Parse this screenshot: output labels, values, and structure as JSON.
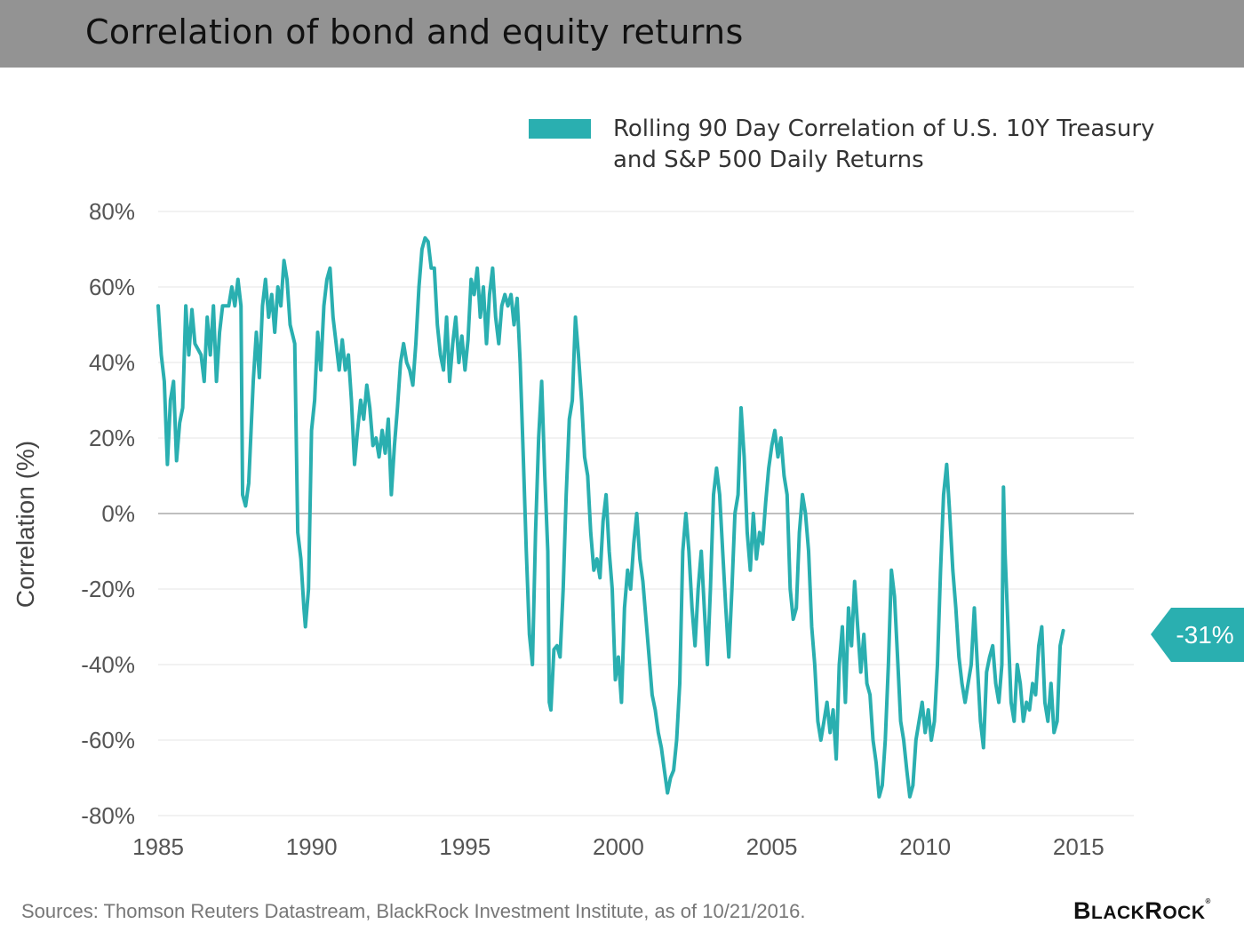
{
  "header": {
    "title": "Correlation of bond and equity returns"
  },
  "footer": {
    "source": "Sources: Thomson Reuters Datastream, BlackRock Investment Institute, as of 10/21/2016.",
    "logo_text": "BlackRock"
  },
  "colors": {
    "series": "#2aafb0",
    "title_bar": "#939393",
    "grid": "#e6e6e6",
    "zero_line": "#aaaaaa"
  },
  "chart_data": {
    "type": "line",
    "title": "Correlation of bond and equity returns",
    "xlabel": "",
    "ylabel": "Correlation (%)",
    "xlim": [
      1985,
      2016.8
    ],
    "ylim": [
      -80,
      80
    ],
    "x_ticks": [
      "1985",
      "1990",
      "1995",
      "2000",
      "2005",
      "2010",
      "2015"
    ],
    "y_ticks": [
      "80%",
      "60%",
      "40%",
      "20%",
      "0%",
      "-20%",
      "-40%",
      "-60%",
      "-80%"
    ],
    "grid": true,
    "legend_position": "top-right",
    "series": [
      {
        "name": "Rolling 90 Day Correlation of U.S. 10Y Treasury and S&P 500 Daily Returns",
        "color": "#2aafb0",
        "points": [
          [
            1985.0,
            55
          ],
          [
            1985.1,
            42
          ],
          [
            1985.2,
            35
          ],
          [
            1985.3,
            13
          ],
          [
            1985.4,
            30
          ],
          [
            1985.5,
            35
          ],
          [
            1985.6,
            14
          ],
          [
            1985.7,
            24
          ],
          [
            1985.8,
            28
          ],
          [
            1985.9,
            55
          ],
          [
            1986.0,
            42
          ],
          [
            1986.1,
            54
          ],
          [
            1986.2,
            45
          ],
          [
            1986.4,
            42
          ],
          [
            1986.5,
            35
          ],
          [
            1986.6,
            52
          ],
          [
            1986.7,
            42
          ],
          [
            1986.8,
            55
          ],
          [
            1986.9,
            35
          ],
          [
            1987.0,
            48
          ],
          [
            1987.1,
            55
          ],
          [
            1987.3,
            55
          ],
          [
            1987.4,
            60
          ],
          [
            1987.5,
            55
          ],
          [
            1987.6,
            62
          ],
          [
            1987.7,
            55
          ],
          [
            1987.75,
            5
          ],
          [
            1987.85,
            2
          ],
          [
            1987.95,
            8
          ],
          [
            1988.1,
            35
          ],
          [
            1988.2,
            48
          ],
          [
            1988.3,
            36
          ],
          [
            1988.4,
            55
          ],
          [
            1988.5,
            62
          ],
          [
            1988.6,
            52
          ],
          [
            1988.7,
            58
          ],
          [
            1988.8,
            48
          ],
          [
            1988.9,
            60
          ],
          [
            1989.0,
            55
          ],
          [
            1989.1,
            67
          ],
          [
            1989.2,
            62
          ],
          [
            1989.3,
            50
          ],
          [
            1989.45,
            45
          ],
          [
            1989.5,
            20
          ],
          [
            1989.55,
            -5
          ],
          [
            1989.65,
            -12
          ],
          [
            1989.75,
            -25
          ],
          [
            1989.8,
            -30
          ],
          [
            1989.9,
            -20
          ],
          [
            1990.0,
            22
          ],
          [
            1990.1,
            30
          ],
          [
            1990.2,
            48
          ],
          [
            1990.3,
            38
          ],
          [
            1990.4,
            55
          ],
          [
            1990.5,
            62
          ],
          [
            1990.6,
            65
          ],
          [
            1990.7,
            52
          ],
          [
            1990.8,
            45
          ],
          [
            1990.9,
            38
          ],
          [
            1991.0,
            46
          ],
          [
            1991.1,
            38
          ],
          [
            1991.2,
            42
          ],
          [
            1991.3,
            30
          ],
          [
            1991.4,
            13
          ],
          [
            1991.5,
            22
          ],
          [
            1991.6,
            30
          ],
          [
            1991.7,
            25
          ],
          [
            1991.8,
            34
          ],
          [
            1991.9,
            28
          ],
          [
            1992.0,
            18
          ],
          [
            1992.1,
            20
          ],
          [
            1992.2,
            15
          ],
          [
            1992.3,
            22
          ],
          [
            1992.4,
            16
          ],
          [
            1992.5,
            25
          ],
          [
            1992.6,
            5
          ],
          [
            1992.7,
            18
          ],
          [
            1992.8,
            28
          ],
          [
            1992.9,
            40
          ],
          [
            1993.0,
            45
          ],
          [
            1993.1,
            40
          ],
          [
            1993.2,
            38
          ],
          [
            1993.3,
            34
          ],
          [
            1993.4,
            45
          ],
          [
            1993.5,
            60
          ],
          [
            1993.6,
            70
          ],
          [
            1993.7,
            73
          ],
          [
            1993.8,
            72
          ],
          [
            1993.9,
            65
          ],
          [
            1994.0,
            65
          ],
          [
            1994.1,
            50
          ],
          [
            1994.2,
            42
          ],
          [
            1994.3,
            38
          ],
          [
            1994.4,
            52
          ],
          [
            1994.5,
            35
          ],
          [
            1994.6,
            45
          ],
          [
            1994.7,
            52
          ],
          [
            1994.8,
            40
          ],
          [
            1994.9,
            47
          ],
          [
            1995.0,
            38
          ],
          [
            1995.1,
            46
          ],
          [
            1995.2,
            62
          ],
          [
            1995.3,
            58
          ],
          [
            1995.4,
            65
          ],
          [
            1995.5,
            52
          ],
          [
            1995.6,
            60
          ],
          [
            1995.7,
            45
          ],
          [
            1995.8,
            58
          ],
          [
            1995.9,
            65
          ],
          [
            1996.0,
            52
          ],
          [
            1996.1,
            45
          ],
          [
            1996.2,
            55
          ],
          [
            1996.3,
            58
          ],
          [
            1996.4,
            55
          ],
          [
            1996.5,
            58
          ],
          [
            1996.6,
            50
          ],
          [
            1996.7,
            57
          ],
          [
            1996.8,
            40
          ],
          [
            1996.9,
            15
          ],
          [
            1997.0,
            -10
          ],
          [
            1997.1,
            -32
          ],
          [
            1997.2,
            -40
          ],
          [
            1997.3,
            -5
          ],
          [
            1997.4,
            20
          ],
          [
            1997.5,
            35
          ],
          [
            1997.6,
            10
          ],
          [
            1997.7,
            -10
          ],
          [
            1997.75,
            -50
          ],
          [
            1997.8,
            -52
          ],
          [
            1997.9,
            -36
          ],
          [
            1998.0,
            -35
          ],
          [
            1998.1,
            -38
          ],
          [
            1998.2,
            -20
          ],
          [
            1998.3,
            5
          ],
          [
            1998.4,
            25
          ],
          [
            1998.5,
            30
          ],
          [
            1998.6,
            52
          ],
          [
            1998.7,
            42
          ],
          [
            1998.8,
            30
          ],
          [
            1998.9,
            15
          ],
          [
            1999.0,
            10
          ],
          [
            1999.1,
            -5
          ],
          [
            1999.2,
            -15
          ],
          [
            1999.3,
            -12
          ],
          [
            1999.4,
            -17
          ],
          [
            1999.5,
            -2
          ],
          [
            1999.6,
            5
          ],
          [
            1999.7,
            -10
          ],
          [
            1999.8,
            -20
          ],
          [
            1999.9,
            -44
          ],
          [
            2000.0,
            -38
          ],
          [
            2000.1,
            -50
          ],
          [
            2000.2,
            -25
          ],
          [
            2000.3,
            -15
          ],
          [
            2000.4,
            -20
          ],
          [
            2000.5,
            -8
          ],
          [
            2000.6,
            0
          ],
          [
            2000.7,
            -12
          ],
          [
            2000.8,
            -18
          ],
          [
            2000.9,
            -28
          ],
          [
            2001.0,
            -38
          ],
          [
            2001.1,
            -48
          ],
          [
            2001.2,
            -52
          ],
          [
            2001.3,
            -58
          ],
          [
            2001.4,
            -62
          ],
          [
            2001.5,
            -68
          ],
          [
            2001.6,
            -74
          ],
          [
            2001.7,
            -70
          ],
          [
            2001.8,
            -68
          ],
          [
            2001.9,
            -60
          ],
          [
            2002.0,
            -45
          ],
          [
            2002.1,
            -10
          ],
          [
            2002.2,
            0
          ],
          [
            2002.3,
            -10
          ],
          [
            2002.4,
            -25
          ],
          [
            2002.5,
            -35
          ],
          [
            2002.6,
            -20
          ],
          [
            2002.7,
            -10
          ],
          [
            2002.8,
            -25
          ],
          [
            2002.9,
            -40
          ],
          [
            2003.0,
            -20
          ],
          [
            2003.1,
            5
          ],
          [
            2003.2,
            12
          ],
          [
            2003.3,
            5
          ],
          [
            2003.4,
            -10
          ],
          [
            2003.5,
            -25
          ],
          [
            2003.6,
            -38
          ],
          [
            2003.7,
            -20
          ],
          [
            2003.8,
            0
          ],
          [
            2003.9,
            5
          ],
          [
            2004.0,
            28
          ],
          [
            2004.1,
            15
          ],
          [
            2004.2,
            -5
          ],
          [
            2004.3,
            -15
          ],
          [
            2004.4,
            0
          ],
          [
            2004.5,
            -12
          ],
          [
            2004.6,
            -5
          ],
          [
            2004.7,
            -8
          ],
          [
            2004.8,
            3
          ],
          [
            2004.9,
            12
          ],
          [
            2005.0,
            18
          ],
          [
            2005.1,
            22
          ],
          [
            2005.2,
            15
          ],
          [
            2005.3,
            20
          ],
          [
            2005.4,
            10
          ],
          [
            2005.5,
            5
          ],
          [
            2005.6,
            -20
          ],
          [
            2005.7,
            -28
          ],
          [
            2005.8,
            -25
          ],
          [
            2005.9,
            -5
          ],
          [
            2006.0,
            5
          ],
          [
            2006.1,
            0
          ],
          [
            2006.2,
            -10
          ],
          [
            2006.3,
            -30
          ],
          [
            2006.4,
            -40
          ],
          [
            2006.5,
            -55
          ],
          [
            2006.6,
            -60
          ],
          [
            2006.7,
            -55
          ],
          [
            2006.8,
            -50
          ],
          [
            2006.9,
            -58
          ],
          [
            2007.0,
            -52
          ],
          [
            2007.1,
            -65
          ],
          [
            2007.2,
            -40
          ],
          [
            2007.3,
            -30
          ],
          [
            2007.4,
            -50
          ],
          [
            2007.5,
            -25
          ],
          [
            2007.6,
            -35
          ],
          [
            2007.7,
            -18
          ],
          [
            2007.8,
            -30
          ],
          [
            2007.9,
            -42
          ],
          [
            2008.0,
            -32
          ],
          [
            2008.1,
            -45
          ],
          [
            2008.2,
            -48
          ],
          [
            2008.3,
            -60
          ],
          [
            2008.4,
            -66
          ],
          [
            2008.5,
            -75
          ],
          [
            2008.6,
            -72
          ],
          [
            2008.7,
            -60
          ],
          [
            2008.8,
            -40
          ],
          [
            2008.9,
            -15
          ],
          [
            2009.0,
            -22
          ],
          [
            2009.1,
            -38
          ],
          [
            2009.2,
            -55
          ],
          [
            2009.3,
            -60
          ],
          [
            2009.4,
            -68
          ],
          [
            2009.5,
            -75
          ],
          [
            2009.6,
            -72
          ],
          [
            2009.7,
            -60
          ],
          [
            2009.8,
            -55
          ],
          [
            2009.9,
            -50
          ],
          [
            2010.0,
            -58
          ],
          [
            2010.1,
            -52
          ],
          [
            2010.2,
            -60
          ],
          [
            2010.3,
            -55
          ],
          [
            2010.4,
            -40
          ],
          [
            2010.5,
            -15
          ],
          [
            2010.6,
            5
          ],
          [
            2010.7,
            13
          ],
          [
            2010.8,
            0
          ],
          [
            2010.9,
            -15
          ],
          [
            2011.0,
            -25
          ],
          [
            2011.1,
            -38
          ],
          [
            2011.2,
            -45
          ],
          [
            2011.3,
            -50
          ],
          [
            2011.4,
            -45
          ],
          [
            2011.5,
            -40
          ],
          [
            2011.6,
            -25
          ],
          [
            2011.7,
            -40
          ],
          [
            2011.8,
            -55
          ],
          [
            2011.9,
            -62
          ],
          [
            2012.0,
            -42
          ],
          [
            2012.1,
            -38
          ],
          [
            2012.2,
            -35
          ],
          [
            2012.3,
            -45
          ],
          [
            2012.4,
            -50
          ],
          [
            2012.5,
            -40
          ],
          [
            2012.55,
            7
          ],
          [
            2012.6,
            -10
          ],
          [
            2012.7,
            -30
          ],
          [
            2012.8,
            -50
          ],
          [
            2012.9,
            -55
          ],
          [
            2013.0,
            -40
          ],
          [
            2013.1,
            -45
          ],
          [
            2013.2,
            -55
          ],
          [
            2013.3,
            -50
          ],
          [
            2013.4,
            -52
          ],
          [
            2013.5,
            -45
          ],
          [
            2013.6,
            -48
          ],
          [
            2013.7,
            -35
          ],
          [
            2013.8,
            -30
          ],
          [
            2013.9,
            -50
          ],
          [
            2014.0,
            -55
          ],
          [
            2014.1,
            -45
          ],
          [
            2014.2,
            -58
          ],
          [
            2014.3,
            -55
          ],
          [
            2014.4,
            -35
          ],
          [
            2014.5,
            -31
          ]
        ]
      }
    ],
    "annotations": [
      {
        "text": "-31%"
      }
    ]
  }
}
